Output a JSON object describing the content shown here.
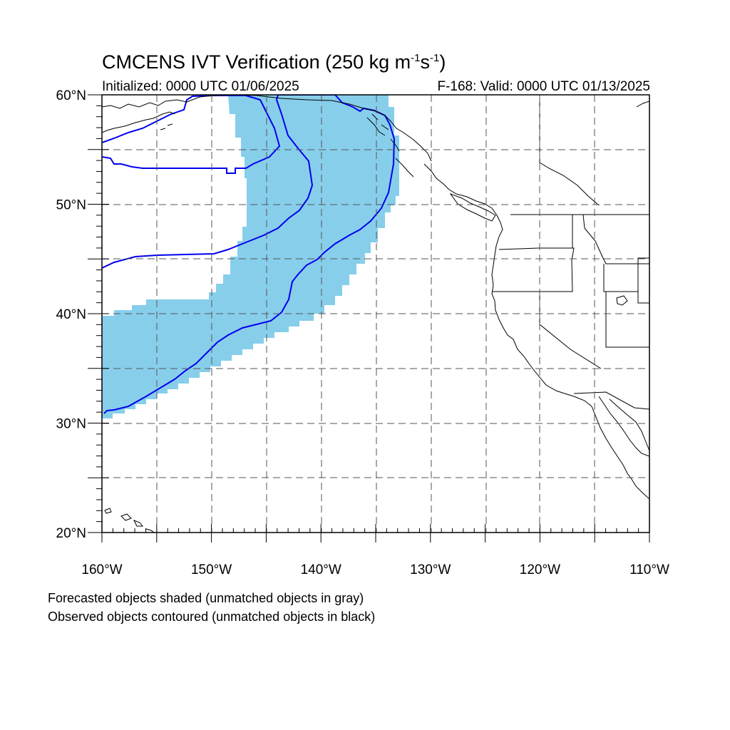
{
  "title": {
    "prefix": "CMCENS IVT Verification (250 kg m",
    "exp1": "-1",
    "mid": "s",
    "exp2": "-1",
    "suffix": ")"
  },
  "subtitle_left": "Initialized: 0000 UTC 01/06/2025",
  "subtitle_right": "F-168: Valid: 0000 UTC 01/13/2025",
  "notes": [
    "Forecasted objects shaded (unmatched objects in gray)",
    "Observed objects contoured (unmatched objects in black)"
  ],
  "map": {
    "projection": "cylindrical-equidistant",
    "lon_range": [
      -160,
      -110
    ],
    "lat_range": [
      20,
      60
    ],
    "grid_dashed": true,
    "lat_labels": [
      {
        "value": 60,
        "label": "60°N"
      },
      {
        "value": 50,
        "label": "50°N"
      },
      {
        "value": 40,
        "label": "40°N"
      },
      {
        "value": 30,
        "label": "30°N"
      },
      {
        "value": 20,
        "label": "20°N"
      }
    ],
    "lon_labels": [
      {
        "value": -160,
        "label": "160°W"
      },
      {
        "value": -150,
        "label": "150°W"
      },
      {
        "value": -140,
        "label": "140°W"
      },
      {
        "value": -130,
        "label": "130°W"
      },
      {
        "value": -120,
        "label": "120°W"
      },
      {
        "value": -110,
        "label": "110°W"
      }
    ],
    "colors": {
      "forecast_fill": "#87ceeb",
      "observed_contour": "#0000ee",
      "coastline": "#000000",
      "grid": "#555555"
    }
  }
}
